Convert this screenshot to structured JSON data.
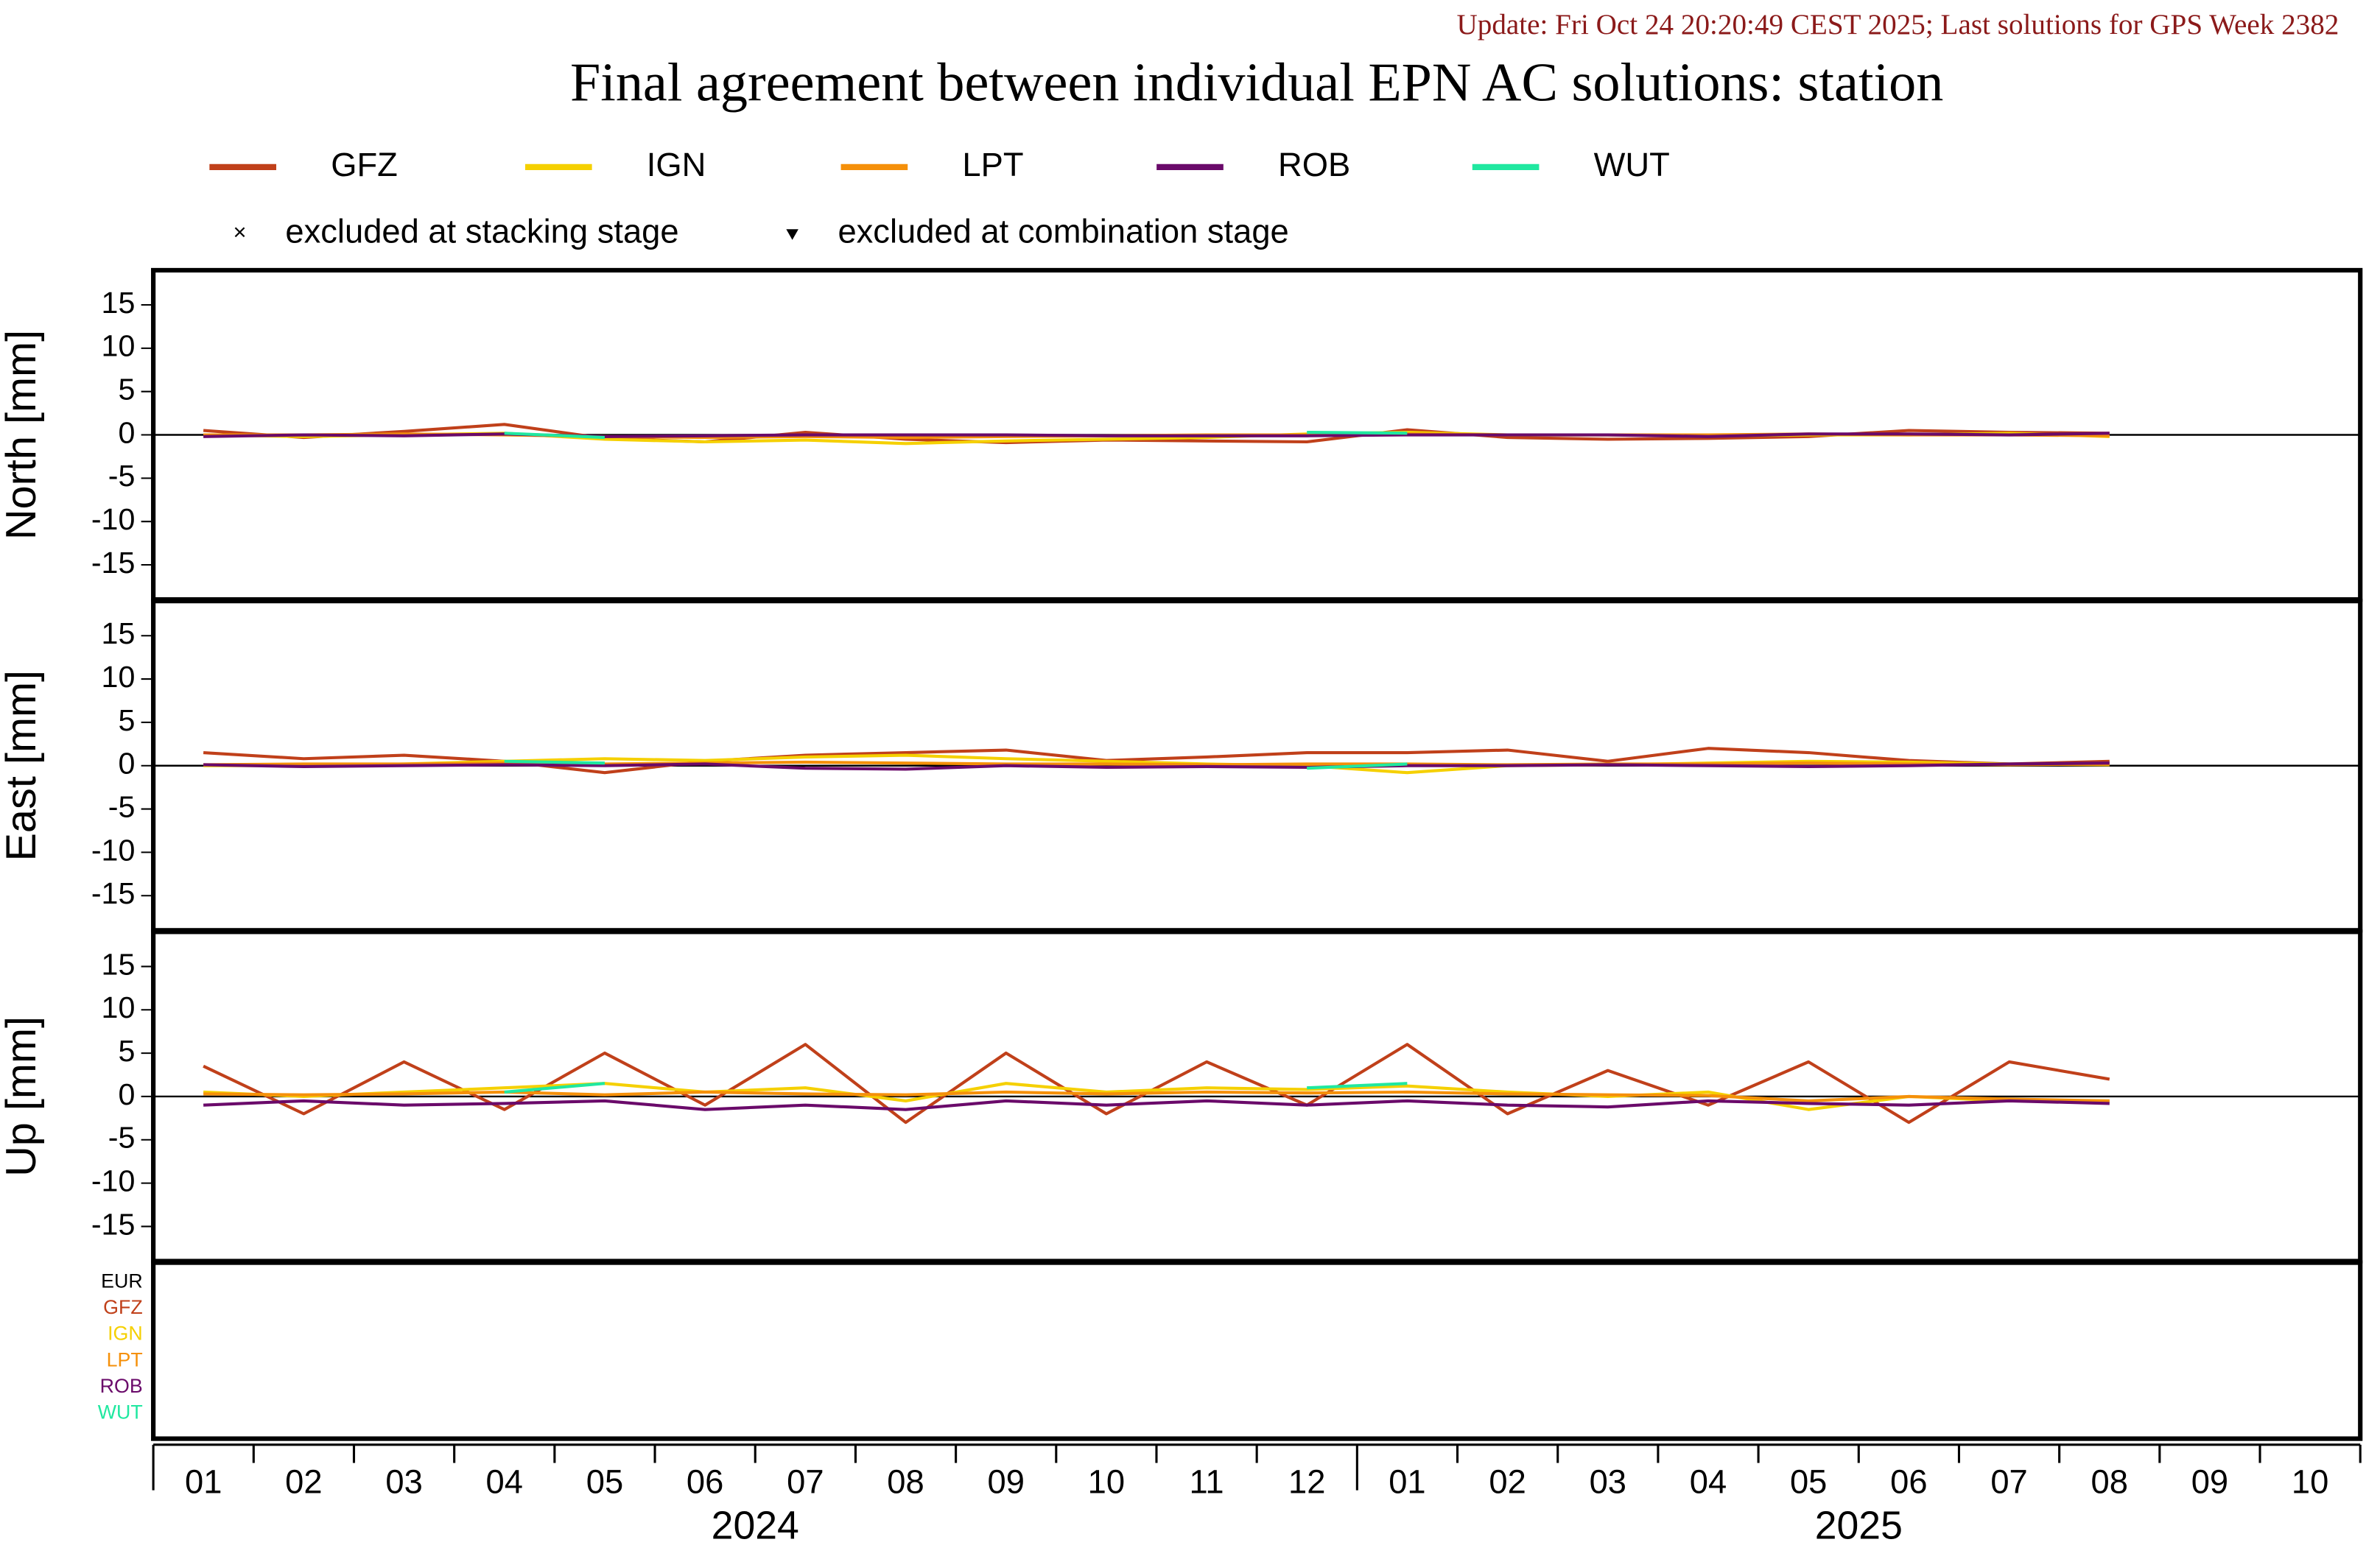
{
  "update": "Update: Fri Oct 24 20:20:49 CEST 2025; Last solutions for GPS Week 2382",
  "chart_data": {
    "type": "line",
    "title": "Final agreement between individual EPN AC solutions: station",
    "series": [
      {
        "name": "GFZ",
        "color": "#c0401a"
      },
      {
        "name": "IGN",
        "color": "#f5d000"
      },
      {
        "name": "LPT",
        "color": "#f5900a"
      },
      {
        "name": "ROB",
        "color": "#6a0a6a"
      },
      {
        "name": "WUT",
        "color": "#20e8a0"
      }
    ],
    "markers": [
      "excluded at stacking stage",
      "excluded at combination stage"
    ],
    "x": [
      "2024-01",
      "2024-02",
      "2024-03",
      "2024-04",
      "2024-05",
      "2024-06",
      "2024-07",
      "2024-08",
      "2024-09",
      "2024-10",
      "2024-11",
      "2024-12",
      "2025-01",
      "2025-02",
      "2025-03",
      "2025-04",
      "2025-05",
      "2025-06",
      "2025-07",
      "2025-08"
    ],
    "xticks": [
      {
        "value": "2024-01",
        "label": "01"
      },
      {
        "value": "2024-02",
        "label": "02"
      },
      {
        "value": "2024-03",
        "label": "03"
      },
      {
        "value": "2024-04",
        "label": "04"
      },
      {
        "value": "2024-05",
        "label": "05"
      },
      {
        "value": "2024-06",
        "label": "06"
      },
      {
        "value": "2024-07",
        "label": "07"
      },
      {
        "value": "2024-08",
        "label": "08"
      },
      {
        "value": "2024-09",
        "label": "09"
      },
      {
        "value": "2024-10",
        "label": "10"
      },
      {
        "value": "2024-11",
        "label": "11"
      },
      {
        "value": "2024-12",
        "label": "12"
      },
      {
        "value": "2025-01",
        "label": "01"
      },
      {
        "value": "2025-02",
        "label": "02"
      },
      {
        "value": "2025-03",
        "label": "03"
      },
      {
        "value": "2025-04",
        "label": "04"
      },
      {
        "value": "2025-05",
        "label": "05"
      },
      {
        "value": "2025-06",
        "label": "06"
      },
      {
        "value": "2025-07",
        "label": "07"
      },
      {
        "value": "2025-08",
        "label": "08"
      },
      {
        "value": "2025-09",
        "label": "09"
      },
      {
        "value": "2025-10",
        "label": "10"
      }
    ],
    "years": [
      "2024",
      "2025"
    ],
    "ylim": [
      -19,
      19
    ],
    "yticks": [
      -15,
      -10,
      -5,
      0,
      5,
      10,
      15
    ],
    "panels": [
      {
        "ylabel": "North [mm]",
        "values": [
          [
            0.5,
            -0.3,
            0.4,
            1.2,
            -0.4,
            -0.8,
            0.3,
            -0.5,
            -0.9,
            -0.6,
            -0.7,
            -0.8,
            0.6,
            -0.3,
            -0.5,
            -0.4,
            -0.2,
            0.5,
            0.3,
            0.2
          ],
          [
            0,
            -0.2,
            0,
            0.2,
            -0.5,
            -0.8,
            -0.6,
            -1,
            -0.7,
            -0.5,
            -0.3,
            0.1,
            0.3,
            0,
            0,
            -0.1,
            0,
            0,
            0.2,
            -0.2
          ],
          [
            0,
            0,
            0.1,
            0,
            -0.2,
            -0.3,
            -0.2,
            -0.3,
            -0.2,
            -0.1,
            0,
            0,
            0.1,
            0,
            0,
            0,
            0.1,
            0,
            0,
            -0.1
          ],
          [
            -0.2,
            0,
            -0.1,
            0.1,
            -0.2,
            -0.1,
            0,
            0,
            0,
            -0.1,
            -0.1,
            -0.1,
            0,
            0,
            0,
            -0.2,
            0.1,
            0.1,
            0,
            0.2
          ],
          [
            null,
            null,
            null,
            0.2,
            -0.3,
            null,
            null,
            null,
            null,
            null,
            null,
            0.3,
            0.2,
            null,
            null,
            null,
            null,
            null,
            null,
            null
          ]
        ]
      },
      {
        "ylabel": "East [mm]",
        "values": [
          [
            1.5,
            0.8,
            1.2,
            0.5,
            -0.8,
            0.5,
            1.2,
            1.5,
            1.8,
            0.6,
            1,
            1.5,
            1.5,
            1.8,
            0.5,
            2,
            1.5,
            0.6,
            0.2,
            0.5
          ],
          [
            0,
            0,
            0.2,
            0.5,
            0.8,
            0.6,
            1,
            1.2,
            0.8,
            0.5,
            0.2,
            0,
            -0.8,
            0,
            0.1,
            0.3,
            0.5,
            0.4,
            0.2,
            0.1
          ],
          [
            0.1,
            0.2,
            0.2,
            0.3,
            0.2,
            0.3,
            0.4,
            0.3,
            0.2,
            0.2,
            0.1,
            0.2,
            0.2,
            0.1,
            0.2,
            0.2,
            0.3,
            0.2,
            0.1,
            0.2
          ],
          [
            0.1,
            -0.1,
            0,
            0.1,
            0,
            0.2,
            -0.3,
            -0.4,
            0,
            -0.2,
            -0.1,
            -0.2,
            0,
            0,
            0.1,
            0,
            -0.1,
            0,
            0.2,
            0.3
          ],
          [
            null,
            null,
            null,
            0.5,
            0.3,
            null,
            null,
            null,
            null,
            null,
            null,
            -0.3,
            0.2,
            null,
            null,
            null,
            null,
            null,
            null,
            null
          ]
        ]
      },
      {
        "ylabel": "Up [mm]",
        "values": [
          [
            3.5,
            -2,
            4,
            -1.5,
            5,
            -1,
            6,
            -3,
            5,
            -2,
            4,
            -1,
            6,
            -2,
            3,
            -1,
            4,
            -3,
            4,
            2
          ],
          [
            0.5,
            0,
            0.5,
            1,
            1.5,
            0.5,
            1,
            -0.5,
            1.5,
            0.5,
            1,
            0.8,
            1.2,
            0.5,
            0,
            0.5,
            -1.5,
            0,
            -0.5,
            -0.5
          ],
          [
            0.3,
            0.2,
            0.3,
            0.5,
            0.2,
            0.5,
            0.3,
            0.2,
            0.5,
            0.3,
            0.5,
            0.4,
            0.5,
            0.3,
            0.2,
            0.1,
            -0.5,
            0,
            -0.3,
            -0.5
          ],
          [
            -1,
            -0.5,
            -1,
            -0.8,
            -0.5,
            -1.5,
            -1,
            -1.5,
            -0.5,
            -1,
            -0.5,
            -1,
            -0.5,
            -1,
            -1.2,
            -0.5,
            -0.8,
            -1,
            -0.5,
            -0.8
          ],
          [
            null,
            null,
            null,
            0.5,
            1.5,
            null,
            null,
            null,
            null,
            null,
            null,
            1,
            1.5,
            null,
            null,
            null,
            null,
            null,
            null,
            null
          ]
        ]
      }
    ],
    "ac_list": [
      {
        "name": "EUR",
        "color": "#000000"
      },
      {
        "name": "GFZ",
        "color": "#c0401a"
      },
      {
        "name": "IGN",
        "color": "#f5d000"
      },
      {
        "name": "LPT",
        "color": "#f5900a"
      },
      {
        "name": "ROB",
        "color": "#6a0a6a"
      },
      {
        "name": "WUT",
        "color": "#20e8a0"
      }
    ]
  }
}
